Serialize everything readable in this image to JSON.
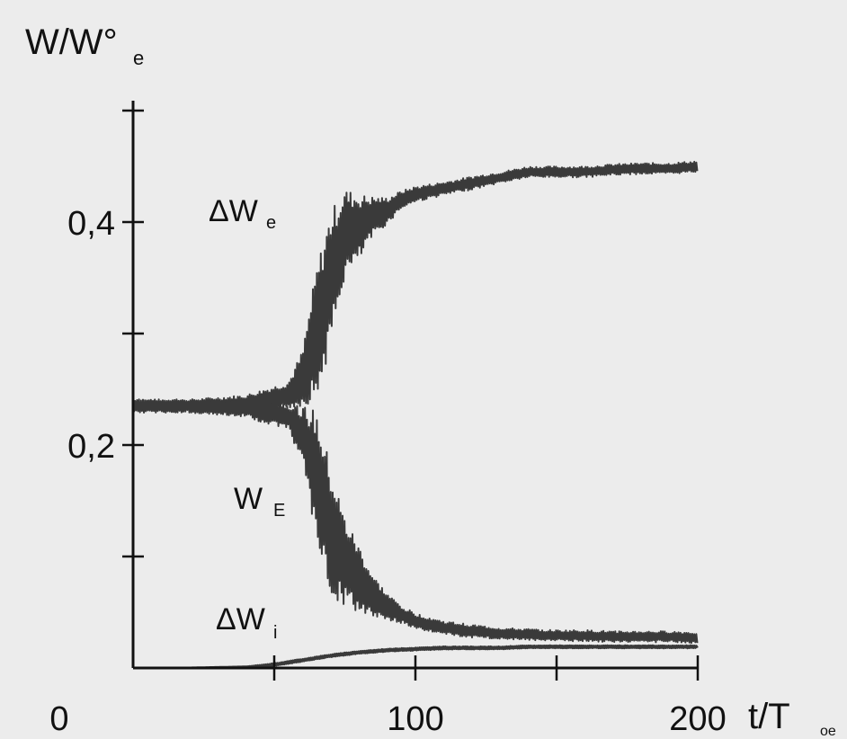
{
  "chart_data": {
    "type": "line",
    "ylabel": "W/W°",
    "ylabel_sub": "e",
    "xlabel": "t/T",
    "xlabel_sub": "oe",
    "xlim": [
      0,
      200
    ],
    "ylim": [
      0,
      0.48
    ],
    "x_tick_values": [
      50,
      100,
      150,
      200
    ],
    "x_tick_labels": [
      "0",
      "100",
      "200"
    ],
    "y_tick_values": [
      0.1,
      0.2,
      0.3,
      0.4,
      0.5
    ],
    "y_tick_labels": [
      "0,2",
      "0,4"
    ],
    "grid": false,
    "series": [
      {
        "name": "ΔW",
        "name_sub": "e",
        "x": [
          0,
          20,
          40,
          55,
          60,
          65,
          70,
          75,
          80,
          85,
          90,
          95,
          100,
          110,
          120,
          130,
          140,
          150,
          160,
          170,
          180,
          190,
          200
        ],
        "y": [
          0.235,
          0.235,
          0.237,
          0.245,
          0.26,
          0.3,
          0.35,
          0.39,
          0.395,
          0.405,
          0.41,
          0.42,
          0.425,
          0.43,
          0.435,
          0.44,
          0.445,
          0.445,
          0.445,
          0.447,
          0.448,
          0.448,
          0.45
        ],
        "amplitude": [
          0.006,
          0.006,
          0.008,
          0.012,
          0.025,
          0.06,
          0.06,
          0.04,
          0.03,
          0.018,
          0.012,
          0.008,
          0.007,
          0.006,
          0.006,
          0.005,
          0.005,
          0.005,
          0.005,
          0.005,
          0.005,
          0.005,
          0.005
        ]
      },
      {
        "name": "W",
        "name_sub": "E",
        "x": [
          0,
          20,
          40,
          55,
          60,
          65,
          70,
          75,
          80,
          85,
          90,
          95,
          100,
          110,
          120,
          130,
          140,
          150,
          160,
          170,
          180,
          190,
          200
        ],
        "y": [
          0.235,
          0.235,
          0.233,
          0.225,
          0.21,
          0.17,
          0.12,
          0.095,
          0.08,
          0.065,
          0.055,
          0.048,
          0.042,
          0.036,
          0.033,
          0.031,
          0.03,
          0.029,
          0.029,
          0.028,
          0.028,
          0.028,
          0.027
        ],
        "amplitude": [
          0.006,
          0.006,
          0.008,
          0.012,
          0.025,
          0.06,
          0.06,
          0.04,
          0.03,
          0.018,
          0.012,
          0.008,
          0.007,
          0.006,
          0.006,
          0.005,
          0.005,
          0.005,
          0.005,
          0.005,
          0.005,
          0.005,
          0.005
        ]
      },
      {
        "name": "ΔW",
        "name_sub": "i",
        "x": [
          0,
          20,
          40,
          50,
          60,
          70,
          80,
          90,
          100,
          110,
          120,
          130,
          140,
          150,
          160,
          170,
          180,
          190,
          200
        ],
        "y": [
          0.0,
          0.0,
          0.001,
          0.003,
          0.007,
          0.011,
          0.014,
          0.016,
          0.017,
          0.018,
          0.018,
          0.018,
          0.019,
          0.019,
          0.019,
          0.019,
          0.019,
          0.019,
          0.019
        ],
        "amplitude": [
          0,
          0,
          0,
          0.001,
          0.001,
          0.001,
          0.001,
          0.001,
          0.001,
          0.001,
          0.001,
          0.001,
          0.001,
          0.001,
          0.001,
          0.001,
          0.001,
          0.001,
          0.001
        ]
      }
    ]
  },
  "colors": {
    "background": "#ececec",
    "trace": "#3a3a3a",
    "axis": "#111111"
  }
}
